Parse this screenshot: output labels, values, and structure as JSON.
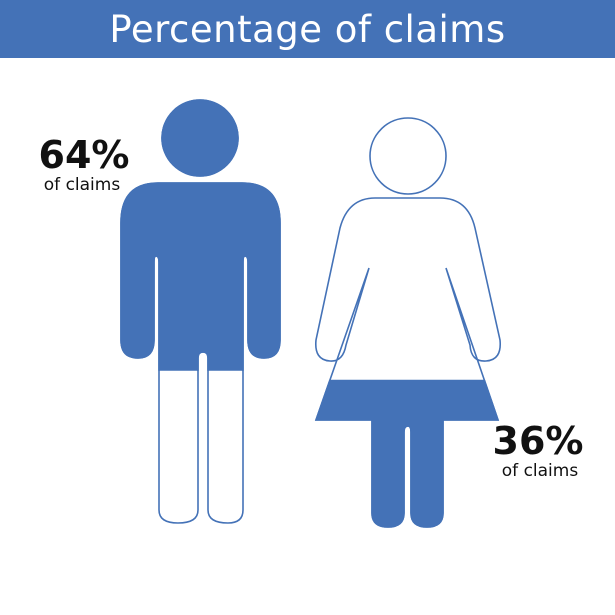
{
  "title": "Percentage of claims",
  "accent_color": "#4472B7",
  "chart_data": {
    "type": "pictogram",
    "title": "Percentage of claims",
    "unit": "%",
    "series": [
      {
        "icon": "male-figure-icon",
        "value": 64,
        "value_label": "64%",
        "sub_label": "of claims"
      },
      {
        "icon": "female-figure-icon",
        "value": 36,
        "value_label": "36%",
        "sub_label": "of claims"
      }
    ],
    "ylim": [
      0,
      100
    ]
  }
}
